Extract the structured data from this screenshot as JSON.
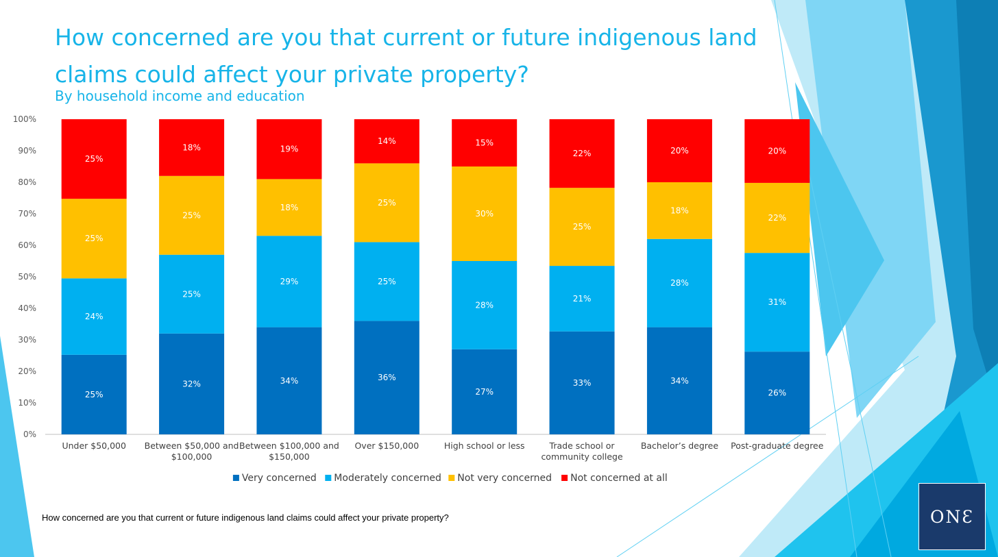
{
  "title": "How concerned are you that current or future indigenous land claims could affect your private property?",
  "subtitle": "By household income and education",
  "footer_question": "How concerned are you that current or future indigenous land claims could affect your private property?",
  "logo_text": "ONƐ",
  "colors": {
    "very": "#0070c0",
    "moderately": "#00b0f0",
    "not_very": "#ffc000",
    "not_at_all": "#ff0000",
    "title": "#17b4e8",
    "logo_bg": "#1a3a6b"
  },
  "chart_data": {
    "type": "bar",
    "stacked": true,
    "percent_stacked": true,
    "categories": [
      "Under $50,000",
      "Between $50,000 and $100,000",
      "Between $100,000 and $150,000",
      "Over $150,000",
      "High school or less",
      "Trade school or community college",
      "Bachelor’s degree",
      "Post-graduate degree"
    ],
    "series": [
      {
        "name": "Very concerned",
        "color": "#0070c0",
        "values": [
          25,
          32,
          34,
          36,
          27,
          33,
          34,
          26
        ]
      },
      {
        "name": "Moderately concerned",
        "color": "#00b0f0",
        "values": [
          24,
          25,
          29,
          25,
          28,
          21,
          28,
          31
        ]
      },
      {
        "name": "Not very concerned",
        "color": "#ffc000",
        "values": [
          25,
          25,
          18,
          25,
          30,
          25,
          18,
          22
        ]
      },
      {
        "name": "Not concerned at all",
        "color": "#ff0000",
        "values": [
          25,
          18,
          19,
          14,
          15,
          22,
          20,
          20
        ]
      }
    ],
    "data_labels": [
      [
        "25%",
        "32%",
        "34%",
        "36%",
        "27%",
        "33%",
        "34%",
        "26%"
      ],
      [
        "24%",
        "25%",
        "29%",
        "25%",
        "28%",
        "21%",
        "28%",
        "31%"
      ],
      [
        "25%",
        "25%",
        "18%",
        "25%",
        "30%",
        "25%",
        "18%",
        "22%"
      ],
      [
        "25%",
        "18%",
        "19%",
        "14%",
        "15%",
        "22%",
        "20%",
        "20%"
      ]
    ],
    "y_ticks": [
      "0%",
      "10%",
      "20%",
      "30%",
      "40%",
      "50%",
      "60%",
      "70%",
      "80%",
      "90%",
      "100%"
    ],
    "ylim": [
      0,
      100
    ],
    "grid": false,
    "legend_position": "bottom"
  }
}
